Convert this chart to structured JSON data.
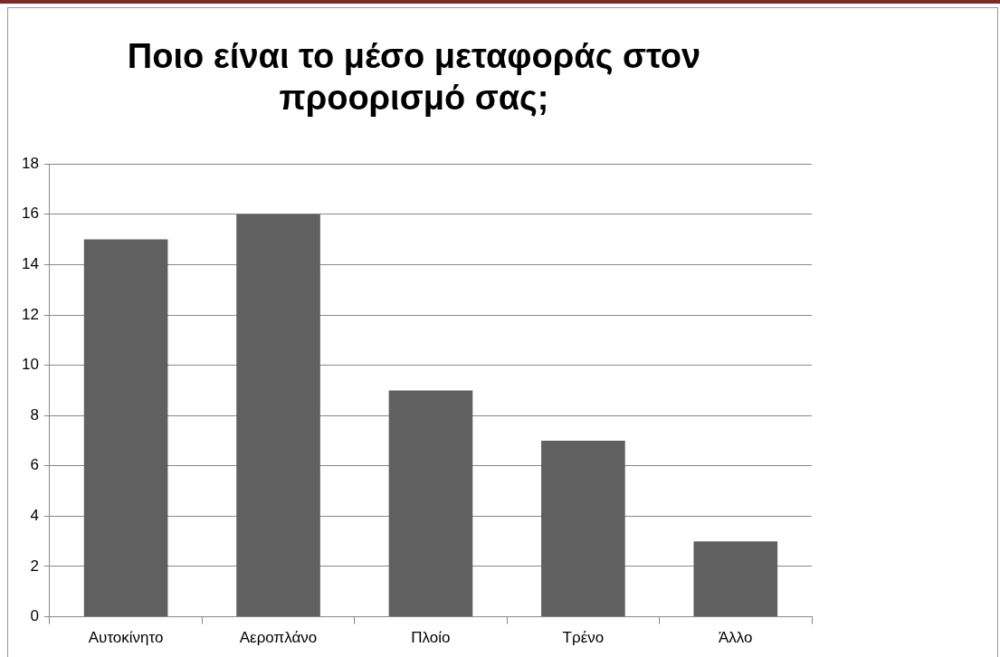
{
  "chart_data": {
    "type": "bar",
    "title": "Ποιο είναι το μέσο μεταφοράς στον προορισμό σας;",
    "categories": [
      "Αυτοκίνητο",
      "Αεροπλάνο",
      "Πλοίο",
      "Τρένο",
      "Άλλο"
    ],
    "values": [
      15,
      16,
      9,
      7,
      3
    ],
    "color": "#606060",
    "ylim": [
      0,
      18
    ],
    "yticks": [
      0,
      2,
      4,
      6,
      8,
      10,
      12,
      14,
      16,
      18
    ],
    "grid": "y",
    "legend": false
  }
}
